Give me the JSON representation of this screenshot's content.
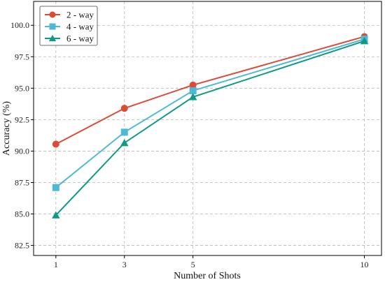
{
  "chart_data": {
    "type": "line",
    "title": "",
    "xlabel": "Number of Shots",
    "ylabel": "Accuracy (%)",
    "x": [
      1,
      3,
      5,
      10
    ],
    "xticks": [
      "1",
      "3",
      "5",
      "10"
    ],
    "xlim": [
      0.35,
      10.5
    ],
    "ylim": [
      81.7,
      101.9
    ],
    "yticks": [
      "82.5",
      "85.0",
      "87.5",
      "90.0",
      "92.5",
      "95.0",
      "97.5",
      "100.0"
    ],
    "grid": true,
    "legend_position": "top-left",
    "series": [
      {
        "name": "2 - way",
        "values": [
          90.55,
          93.4,
          95.25,
          99.1
        ],
        "color": "#dd4a35",
        "marker": "circle"
      },
      {
        "name": "4 - way",
        "values": [
          87.1,
          91.5,
          94.8,
          98.9
        ],
        "color": "#4eb9d4",
        "marker": "square"
      },
      {
        "name": "6 - way",
        "values": [
          84.9,
          90.65,
          94.3,
          98.75
        ],
        "color": "#0f9a84",
        "marker": "triangle"
      }
    ]
  }
}
